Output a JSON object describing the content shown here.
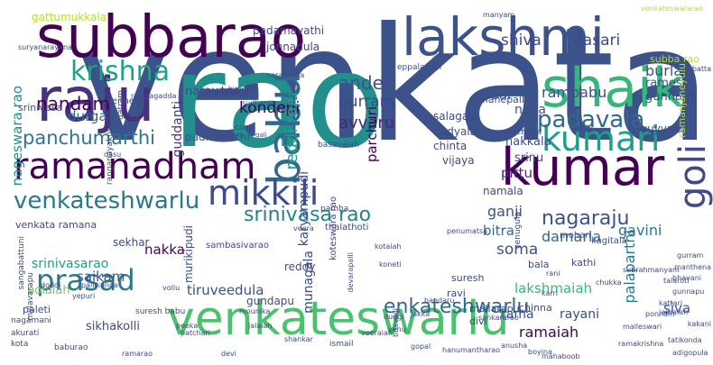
{
  "words": [
    {
      "text": "venkata",
      "color": "#3b528b"
    },
    {
      "text": "rao",
      "color": "#21908d"
    },
    {
      "text": "subbarao",
      "color": "#440154"
    },
    {
      "text": "lakshmi",
      "color": "#3b528b"
    },
    {
      "text": "shaik",
      "color": "#35b779"
    },
    {
      "text": "raju",
      "color": "#46327e"
    },
    {
      "text": "kumar",
      "color": "#440154"
    },
    {
      "text": "venkateswarlu",
      "color": "#4ac16d"
    },
    {
      "text": "babu",
      "color": "#31688e"
    },
    {
      "text": "ramanadham",
      "color": "#440154"
    },
    {
      "text": "mikkili",
      "color": "#3e4a89"
    },
    {
      "text": "kumari",
      "color": "#1f9e89"
    },
    {
      "text": "krishna",
      "color": "#20a386"
    },
    {
      "text": "prasad",
      "color": "#2a788e"
    },
    {
      "text": "goli",
      "color": "#3e4a89"
    },
    {
      "text": "venkateshwarlu",
      "color": "#2a788e"
    },
    {
      "text": "padavala",
      "color": "#31688e"
    },
    {
      "text": "srinivasa rao",
      "color": "#26828e"
    },
    {
      "text": "nagaraju",
      "color": "#3b528b"
    },
    {
      "text": "enkateshwarlu",
      "color": "#31688e"
    },
    {
      "text": "panchumarthi",
      "color": "#2a788e"
    },
    {
      "text": "nandam",
      "color": "#440154"
    },
    {
      "text": "ande",
      "color": "#3b528b"
    },
    {
      "text": "gurram",
      "color": "#3e4a89"
    },
    {
      "text": "avvaru",
      "color": "#482878"
    },
    {
      "text": "shiva",
      "color": "#3e4a89"
    },
    {
      "text": "dasari",
      "color": "#3e4a89"
    },
    {
      "text": "kondepi",
      "color": "#440154"
    },
    {
      "text": "rambabu",
      "color": "#3b528b"
    },
    {
      "text": "burla",
      "color": "#3b528b"
    },
    {
      "text": "ramesh",
      "color": "#3e4a89"
    },
    {
      "text": "gunnam",
      "color": "#3e4a89"
    },
    {
      "text": "durga",
      "color": "#31688e"
    },
    {
      "text": "sai",
      "color": "#3b528b"
    },
    {
      "text": "naga",
      "color": "#3b528b"
    },
    {
      "text": "gattumukkala",
      "color": "#b5de2b"
    },
    {
      "text": "narayana",
      "color": "#3e4a89"
    },
    {
      "text": "padamavathi",
      "color": "#3e4a89"
    },
    {
      "text": "jonnadula",
      "color": "#3e4a89"
    },
    {
      "text": "nageswara rao",
      "color": "#21908d"
    },
    {
      "text": "guddanti",
      "color": "#443a83"
    },
    {
      "text": "reddi raju",
      "color": "#1f9e89"
    },
    {
      "text": "parchuri",
      "color": "#440154"
    },
    {
      "text": "pittu",
      "color": "#482878"
    },
    {
      "text": "nakkala",
      "color": "#3e4a89"
    },
    {
      "text": "srinu",
      "color": "#3e4a89"
    },
    {
      "text": "padmavathi",
      "color": "#3b528b"
    },
    {
      "text": "chinta",
      "color": "#3e4a89"
    },
    {
      "text": "vijaya",
      "color": "#3e4a89"
    },
    {
      "text": "dudyala",
      "color": "#3e4a89"
    },
    {
      "text": "salagala",
      "color": "#3e4a89"
    },
    {
      "text": "namala",
      "color": "#3e4a89"
    },
    {
      "text": "manepalli",
      "color": "#3e4a89"
    },
    {
      "text": "vuyyala",
      "color": "#3e4a89"
    },
    {
      "text": "ramanjaneyulu",
      "color": "#b5de2b"
    },
    {
      "text": "srinivasa",
      "color": "#3e4a89"
    },
    {
      "text": "karyampudi",
      "color": "#3e4a89"
    },
    {
      "text": "ganji",
      "color": "#3b528b"
    },
    {
      "text": "bitra",
      "color": "#31688e"
    },
    {
      "text": "soma",
      "color": "#3b528b"
    },
    {
      "text": "damarla",
      "color": "#31688e"
    },
    {
      "text": "gavini",
      "color": "#2a788e"
    },
    {
      "text": "palaparthi",
      "color": "#2a788e"
    },
    {
      "text": "nakka",
      "color": "#440154"
    },
    {
      "text": "munagala",
      "color": "#3e4a89"
    },
    {
      "text": "murikipudi",
      "color": "#3e4a89"
    },
    {
      "text": "saikam",
      "color": "#3b528b"
    },
    {
      "text": "srinivasarao",
      "color": "#1f9e89"
    },
    {
      "text": "tiruveedula",
      "color": "#3b528b"
    },
    {
      "text": "gundapu",
      "color": "#3e4a89"
    },
    {
      "text": "lakshmaiah",
      "color": "#35b779"
    },
    {
      "text": "siva",
      "color": "#3b528b"
    },
    {
      "text": "rama",
      "color": "#3b528b"
    },
    {
      "text": "rayani",
      "color": "#3e4a89"
    },
    {
      "text": "ramaiah",
      "color": "#440154"
    },
    {
      "text": "sikhakolli",
      "color": "#3e4a89"
    },
    {
      "text": "chinna",
      "color": "#3e4a89"
    },
    {
      "text": "bala",
      "color": "#3e4a89"
    },
    {
      "text": "kathi",
      "color": "#3e4a89"
    },
    {
      "text": "venkata ramana",
      "color": "#3e4a89"
    },
    {
      "text": "sekhar",
      "color": "#3e4a89"
    },
    {
      "text": "reddy",
      "color": "#3e4a89"
    },
    {
      "text": "borra",
      "color": "#3e4a89"
    },
    {
      "text": "mohan",
      "color": "#3e4a89"
    },
    {
      "text": "kagitala",
      "color": "#3e4a89"
    },
    {
      "text": "polaiah",
      "color": "#6ece58"
    },
    {
      "text": "paleti",
      "color": "#3e4a89"
    },
    {
      "text": "suresh",
      "color": "#3e4a89"
    },
    {
      "text": "ravi",
      "color": "#3e4a89"
    },
    {
      "text": "mallarapu",
      "color": "#3e4a89"
    },
    {
      "text": "divi",
      "color": "#3e4a89"
    },
    {
      "text": "subba rao",
      "color": "#b5de2b"
    },
    {
      "text": "suresh babu",
      "color": "#3e4a89"
    },
    {
      "text": "sangabattuni",
      "color": "#3e4a89"
    },
    {
      "text": "mylavarapu",
      "color": "#3e4a89"
    },
    {
      "text": "venneti",
      "color": "#3e4a89"
    },
    {
      "text": "gatram",
      "color": "#3e4a89"
    },
    {
      "text": "pamba",
      "color": "#3e4a89"
    },
    {
      "text": "thalathoti",
      "color": "#3e4a89"
    },
    {
      "text": "yenugula",
      "color": "#3e4a89"
    },
    {
      "text": "macharla",
      "color": "#3e4a89"
    },
    {
      "text": "sambasivarao",
      "color": "#3e4a89"
    },
    {
      "text": "koteswara rao",
      "color": "#3e4a89"
    },
    {
      "text": "ranganayakulu",
      "color": "#3e4a89"
    },
    {
      "text": "coat",
      "color": "#3e4a89"
    },
    {
      "text": "basavaiah",
      "color": "#3e4a89"
    },
    {
      "text": "venkateswararao",
      "color": "#b5de2b"
    },
    {
      "text": "eppalapalli",
      "color": "#3e4a89"
    },
    {
      "text": "suryanarayana",
      "color": "#3e4a89"
    },
    {
      "text": "regulagadda",
      "color": "#3e4a89"
    },
    {
      "text": "narasimha",
      "color": "#3e4a89"
    },
    {
      "text": "manyam",
      "color": "#3e4a89"
    },
    {
      "text": "kundeti",
      "color": "#3e4a89"
    },
    {
      "text": "chukka",
      "color": "#3e4a89"
    },
    {
      "text": "batta",
      "color": "#3e4a89"
    },
    {
      "text": "kakani",
      "color": "#3e4a89"
    },
    {
      "text": "akurati",
      "color": "#3e4a89"
    },
    {
      "text": "baburao",
      "color": "#3e4a89"
    },
    {
      "text": "nagamani",
      "color": "#3e4a89"
    },
    {
      "text": "kota",
      "color": "#3e4a89"
    },
    {
      "text": "gopal",
      "color": "#3e4a89"
    },
    {
      "text": "mounika",
      "color": "#3e4a89"
    },
    {
      "text": "devarapalli",
      "color": "#3e4a89"
    },
    {
      "text": "subrahmanyam",
      "color": "#3e4a89"
    },
    {
      "text": "ismail",
      "color": "#3e4a89"
    },
    {
      "text": "ramakrishna",
      "color": "#3e4a89"
    },
    {
      "text": "malleswari",
      "color": "#3e4a89"
    },
    {
      "text": "adigopula",
      "color": "#3e4a89"
    },
    {
      "text": "tatikonda",
      "color": "#3e4a89"
    },
    {
      "text": "peeka",
      "color": "#3e4a89"
    },
    {
      "text": "jalaiah",
      "color": "#3e4a89"
    },
    {
      "text": "shankar",
      "color": "#3e4a89"
    },
    {
      "text": "bandaru",
      "color": "#3e4a89"
    },
    {
      "text": "duggi",
      "color": "#3e4a89"
    },
    {
      "text": "doddi",
      "color": "#3e4a89"
    },
    {
      "text": "yepuri",
      "color": "#3e4a89"
    },
    {
      "text": "gali",
      "color": "#3e4a89"
    },
    {
      "text": "kotaiah",
      "color": "#3e4a89"
    },
    {
      "text": "jakka",
      "color": "#3e4a89"
    },
    {
      "text": "venu",
      "color": "#3e4a89"
    },
    {
      "text": "veeraiah",
      "color": "#3e4a89"
    },
    {
      "text": "patchari",
      "color": "#3e4a89"
    },
    {
      "text": "bhavani",
      "color": "#3e4a89"
    },
    {
      "text": "koneti",
      "color": "#3e4a89"
    },
    {
      "text": "jakraiah",
      "color": "#3e4a89"
    },
    {
      "text": "kattari",
      "color": "#3e4a89"
    },
    {
      "text": "karri",
      "color": "#3e4a89"
    },
    {
      "text": "rani",
      "color": "#3e4a89"
    },
    {
      "text": "ponnam",
      "color": "#3e4a89"
    },
    {
      "text": "dasu",
      "color": "#3e4a89"
    },
    {
      "text": "vollu",
      "color": "#3e4a89"
    },
    {
      "text": "talaroti",
      "color": "#3e4a89"
    },
    {
      "text": "gunnapu",
      "color": "#3e4a89"
    },
    {
      "text": "gurram",
      "color": "#3e4a89"
    },
    {
      "text": "manthena",
      "color": "#3e4a89"
    },
    {
      "text": "bhavani",
      "color": "#3e4a89"
    },
    {
      "text": "anusha",
      "color": "#3e4a89"
    },
    {
      "text": "pallikonda",
      "color": "#3e4a89"
    },
    {
      "text": "sankararao",
      "color": "#3e4a89"
    },
    {
      "text": "sudhanti",
      "color": "#3e4a89"
    },
    {
      "text": "neelam",
      "color": "#3e4a89"
    },
    {
      "text": "veera",
      "color": "#3e4a89"
    },
    {
      "text": "hanumantharao",
      "color": "#3e4a89"
    },
    {
      "text": "penumatsa",
      "color": "#3e4a89"
    },
    {
      "text": "mahaboob",
      "color": "#3e4a89"
    },
    {
      "text": "ramarao",
      "color": "#3e4a89"
    },
    {
      "text": "devi",
      "color": "#3e4a89"
    },
    {
      "text": "boyina",
      "color": "#3e4a89"
    }
  ]
}
